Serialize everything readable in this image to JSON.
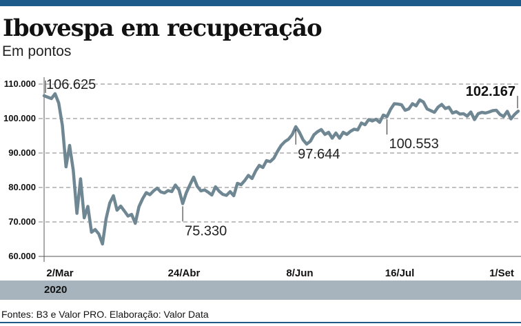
{
  "colors": {
    "accent": "#1c5a8a",
    "line": "#6f8793",
    "year_band": "#a7b4bd",
    "grid": "#9a9a9a"
  },
  "title": "Ibovespa em recuperação",
  "subtitle": "Em pontos",
  "year_label": "2020",
  "source": "Fontes: B3 e Valor PRO. Elaboração: Valor Data",
  "chart_data": {
    "type": "line",
    "title": "Ibovespa em recuperação",
    "subtitle": "Em pontos",
    "xlabel": "",
    "ylabel": "",
    "ylim": [
      60000,
      110000
    ],
    "y_ticks": [
      60000,
      70000,
      80000,
      90000,
      100000,
      110000
    ],
    "y_tick_labels": [
      "60.000",
      "70.000",
      "80.000",
      "90.000",
      "100.000",
      "110.000"
    ],
    "x_ticks": [
      "2/Mar",
      "24/Abr",
      "8/Jun",
      "16/Jul",
      "1/Set"
    ],
    "grid": true,
    "legend": "none",
    "series": [
      {
        "values": [
          106625,
          106200,
          105800,
          107200,
          104500,
          98000,
          86000,
          92200,
          85000,
          72500,
          82500,
          71200,
          74500,
          67000,
          67800,
          66500,
          63600,
          71000,
          75500,
          77600,
          73400,
          74600,
          73200,
          71700,
          72200,
          69600,
          74400,
          76700,
          78500,
          77900,
          79000,
          79800,
          78700,
          78400,
          79100,
          78800,
          80700,
          79300,
          75330,
          78500,
          80800,
          83000,
          80300,
          79000,
          79300,
          78600,
          77800,
          80200,
          78900,
          78000,
          77700,
          78800,
          77600,
          81200,
          80800,
          82000,
          83500,
          82600,
          84800,
          86400,
          85800,
          87800,
          87500,
          88500,
          90500,
          92200,
          93300,
          94000,
          95300,
          97644,
          96000,
          93800,
          92600,
          93400,
          95300,
          96200,
          96800,
          95400,
          96000,
          94300,
          95800,
          94300,
          96000,
          95400,
          96300,
          96900,
          96700,
          98700,
          98200,
          99700,
          99300,
          99800,
          98900,
          101000,
          100553,
          102700,
          104300,
          104200,
          104000,
          102400,
          102800,
          104300,
          103700,
          105400,
          104800,
          102800,
          102300,
          101800,
          103300,
          104100,
          102900,
          103300,
          101600,
          102000,
          101300,
          101400,
          100700,
          101900,
          99700,
          101400,
          101800,
          101600,
          101900,
          102300,
          102400,
          101200,
          100600,
          102100,
          99900,
          101200,
          102167
        ]
      }
    ],
    "annotations": [
      {
        "index": 0,
        "value": 106625,
        "label": "106.625",
        "emphasis": false
      },
      {
        "index": 38,
        "value": 75330,
        "label": "75.330",
        "emphasis": false
      },
      {
        "index": 69,
        "value": 97644,
        "label": "97.644",
        "emphasis": false
      },
      {
        "index": 94,
        "value": 100553,
        "label": "100.553",
        "emphasis": false
      },
      {
        "index": 130,
        "value": 102167,
        "label": "102.167",
        "emphasis": true
      }
    ]
  }
}
